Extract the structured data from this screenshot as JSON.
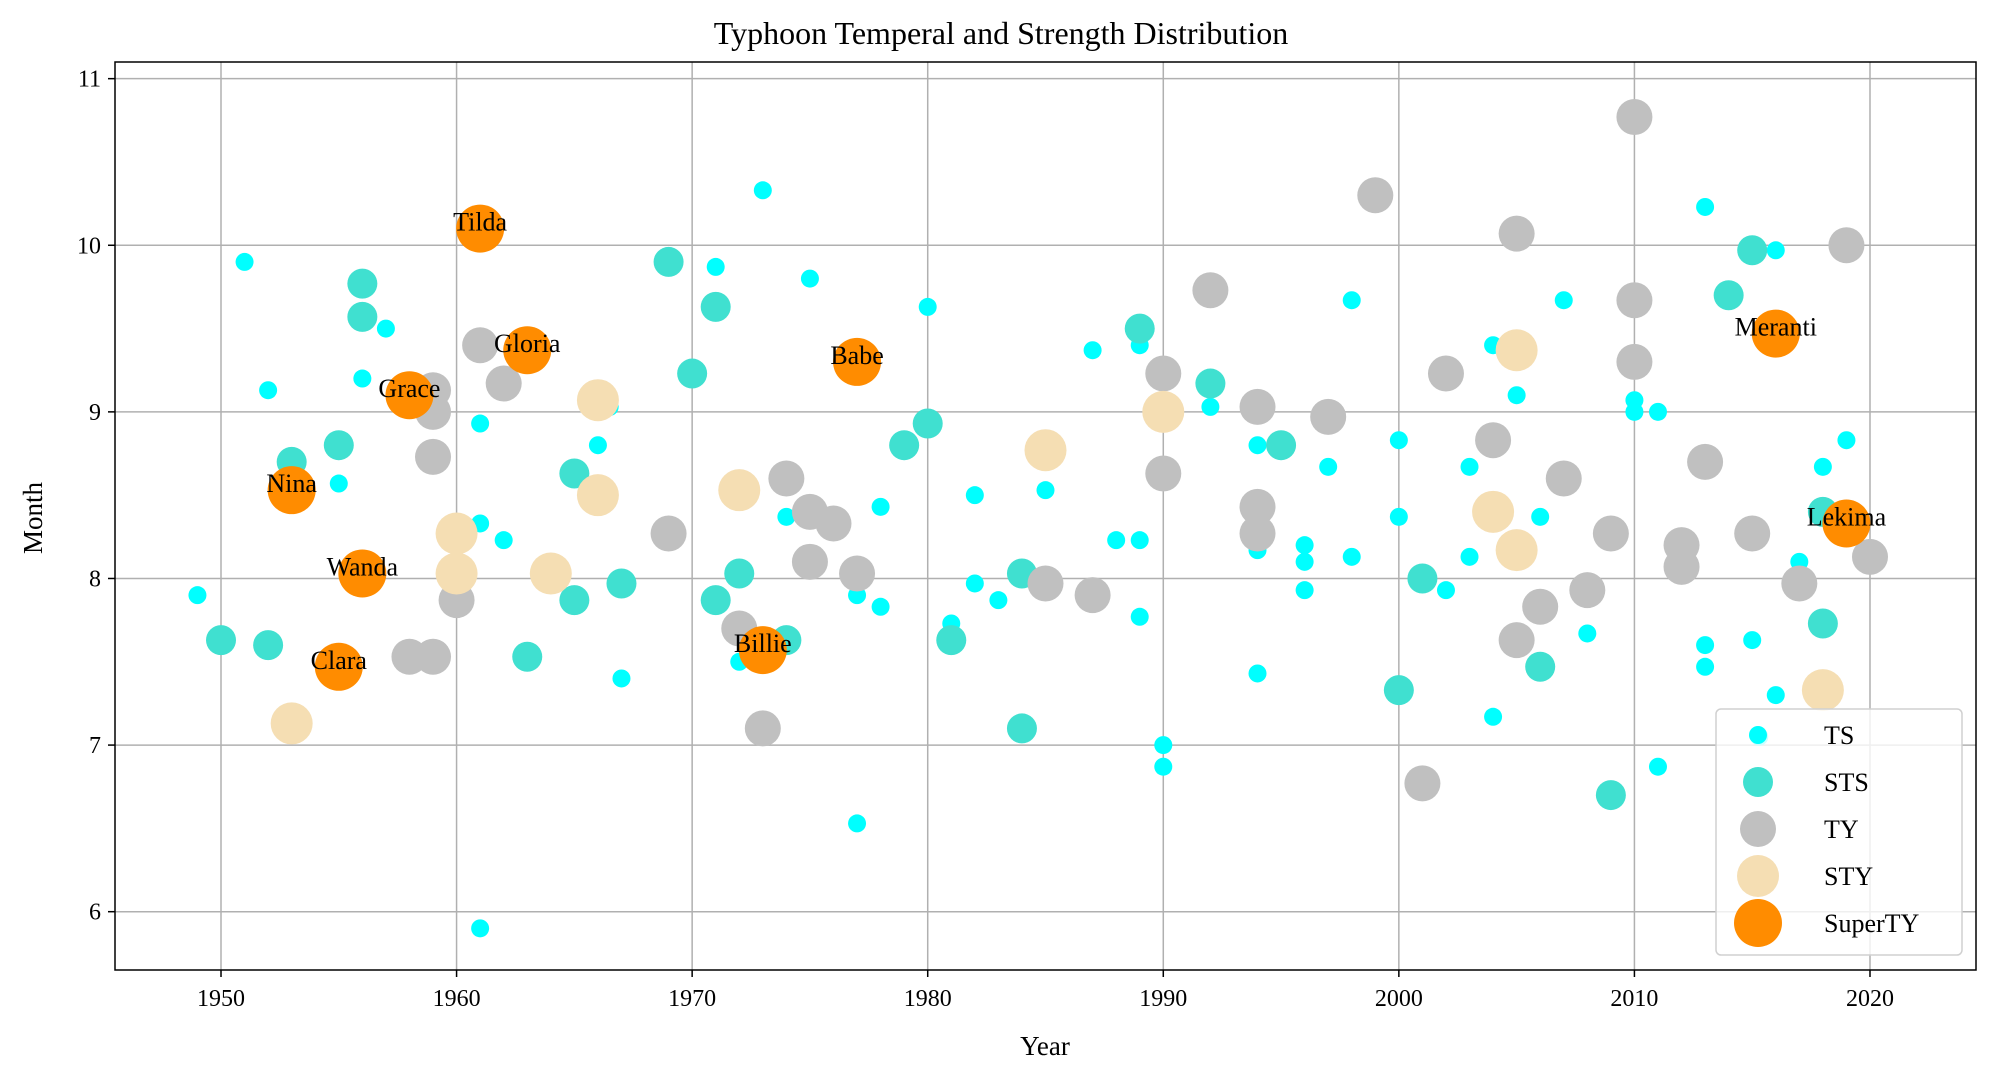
{
  "chart_data": {
    "type": "scatter",
    "title": "Typhoon Temperal and Strength Distribution",
    "xlabel": "Year",
    "ylabel": "Month",
    "xlim": [
      1945.5,
      2024.5
    ],
    "ylim": [
      5.65,
      11.1
    ],
    "xticks": [
      1950,
      1960,
      1970,
      1980,
      1990,
      2000,
      2010,
      2020
    ],
    "yticks": [
      6,
      7,
      8,
      9,
      10,
      11
    ],
    "grid": true,
    "legend_position": "bottom-right",
    "series": [
      {
        "name": "TS",
        "color": "#00ffff",
        "size": "small",
        "points": [
          [
            1949,
            7.9
          ],
          [
            1951,
            9.9
          ],
          [
            1952,
            9.13
          ],
          [
            1955,
            8.57
          ],
          [
            1956,
            9.2
          ],
          [
            1957,
            9.5
          ],
          [
            1961,
            8.93
          ],
          [
            1961,
            8.33
          ],
          [
            1961,
            5.9
          ],
          [
            1962,
            8.23
          ],
          [
            1966,
            8.8
          ],
          [
            1966.5,
            9.03
          ],
          [
            1967,
            7.4
          ],
          [
            1971,
            9.87
          ],
          [
            1972,
            7.5
          ],
          [
            1973,
            10.33
          ],
          [
            1974,
            8.37
          ],
          [
            1975,
            9.8
          ],
          [
            1977,
            7.9
          ],
          [
            1977,
            6.53
          ],
          [
            1978,
            7.83
          ],
          [
            1978,
            8.43
          ],
          [
            1980,
            9.63
          ],
          [
            1981,
            7.73
          ],
          [
            1982,
            8.5
          ],
          [
            1982,
            7.97
          ],
          [
            1983,
            7.87
          ],
          [
            1985,
            8.53
          ],
          [
            1987,
            9.37
          ],
          [
            1988,
            8.23
          ],
          [
            1989,
            9.4
          ],
          [
            1989,
            8.23
          ],
          [
            1989,
            7.77
          ],
          [
            1990,
            7.0
          ],
          [
            1990,
            6.87
          ],
          [
            1992,
            9.03
          ],
          [
            1994,
            8.8
          ],
          [
            1994,
            8.17
          ],
          [
            1994,
            7.43
          ],
          [
            1996,
            8.2
          ],
          [
            1996,
            8.1
          ],
          [
            1996,
            7.93
          ],
          [
            1997,
            8.67
          ],
          [
            1998,
            9.67
          ],
          [
            1998,
            8.13
          ],
          [
            2000,
            8.83
          ],
          [
            2000,
            8.37
          ],
          [
            2002,
            7.93
          ],
          [
            2003,
            8.67
          ],
          [
            2003,
            8.13
          ],
          [
            2004,
            9.4
          ],
          [
            2004,
            7.17
          ],
          [
            2005,
            9.1
          ],
          [
            2006,
            8.37
          ],
          [
            2007,
            9.67
          ],
          [
            2008,
            7.67
          ],
          [
            2010,
            9.07
          ],
          [
            2010,
            9.0
          ],
          [
            2011,
            6.87
          ],
          [
            2011,
            9.0
          ],
          [
            2013,
            10.23
          ],
          [
            2013,
            7.6
          ],
          [
            2013,
            7.47
          ],
          [
            2015,
            7.63
          ],
          [
            2015.3,
            7.05
          ],
          [
            2016,
            7.3
          ],
          [
            2016,
            9.97
          ],
          [
            2017,
            8.1
          ],
          [
            2018,
            8.67
          ],
          [
            2019,
            8.83
          ],
          [
            2019,
            10.03
          ]
        ]
      },
      {
        "name": "STS",
        "color": "#40e0d0",
        "size": "medium",
        "points": [
          [
            1950,
            7.63
          ],
          [
            1952,
            7.6
          ],
          [
            1953,
            8.7
          ],
          [
            1955,
            8.8
          ],
          [
            1956,
            9.77
          ],
          [
            1956,
            9.57
          ],
          [
            1963,
            7.53
          ],
          [
            1965,
            8.63
          ],
          [
            1965,
            7.87
          ],
          [
            1967,
            7.97
          ],
          [
            1969,
            9.9
          ],
          [
            1970,
            9.23
          ],
          [
            1971,
            9.63
          ],
          [
            1971,
            7.87
          ],
          [
            1972,
            8.03
          ],
          [
            1974,
            7.63
          ],
          [
            1979,
            8.8
          ],
          [
            1980,
            8.93
          ],
          [
            1981,
            7.63
          ],
          [
            1984,
            8.03
          ],
          [
            1984,
            7.1
          ],
          [
            1989,
            9.5
          ],
          [
            1992,
            9.17
          ],
          [
            1995,
            8.8
          ],
          [
            2000,
            7.33
          ],
          [
            2001,
            8.0
          ],
          [
            2006,
            7.47
          ],
          [
            2009,
            6.7
          ],
          [
            2014,
            9.7
          ],
          [
            2015,
            9.97
          ],
          [
            2018,
            8.4
          ],
          [
            2018,
            7.73
          ]
        ]
      },
      {
        "name": "TY",
        "color": "#c0c0c0",
        "size": "large",
        "points": [
          [
            1958,
            7.53
          ],
          [
            1959,
            9.13
          ],
          [
            1959,
            9.0
          ],
          [
            1959,
            8.73
          ],
          [
            1959,
            7.53
          ],
          [
            1960,
            7.87
          ],
          [
            1961,
            9.4
          ],
          [
            1962,
            9.17
          ],
          [
            1969,
            8.27
          ],
          [
            1972,
            7.7
          ],
          [
            1973,
            7.1
          ],
          [
            1974,
            8.6
          ],
          [
            1975,
            8.4
          ],
          [
            1975,
            8.1
          ],
          [
            1976,
            8.33
          ],
          [
            1977,
            8.03
          ],
          [
            1985,
            7.97
          ],
          [
            1987,
            7.9
          ],
          [
            1990,
            9.23
          ],
          [
            1990,
            8.63
          ],
          [
            1992,
            9.73
          ],
          [
            1994,
            9.03
          ],
          [
            1994,
            8.43
          ],
          [
            1994,
            8.27
          ],
          [
            1997,
            8.97
          ],
          [
            1999,
            10.3
          ],
          [
            2001,
            6.77
          ],
          [
            2002,
            9.23
          ],
          [
            2004,
            8.83
          ],
          [
            2005,
            10.07
          ],
          [
            2005,
            7.63
          ],
          [
            2006,
            7.83
          ],
          [
            2007,
            8.6
          ],
          [
            2008,
            7.93
          ],
          [
            2009,
            8.27
          ],
          [
            2010,
            10.77
          ],
          [
            2010,
            9.67
          ],
          [
            2010,
            9.3
          ],
          [
            2012,
            8.2
          ],
          [
            2012,
            8.07
          ],
          [
            2013,
            8.7
          ],
          [
            2015,
            8.27
          ],
          [
            2017,
            7.97
          ],
          [
            2019,
            10.0
          ],
          [
            2020,
            8.13
          ]
        ]
      },
      {
        "name": "STY",
        "color": "#f5deb3",
        "size": "xlarge",
        "points": [
          [
            1953,
            7.13
          ],
          [
            1960,
            8.27
          ],
          [
            1960,
            8.03
          ],
          [
            1964,
            8.03
          ],
          [
            1966,
            9.07
          ],
          [
            1966,
            8.5
          ],
          [
            1972,
            8.53
          ],
          [
            1985,
            8.77
          ],
          [
            1990,
            9.0
          ],
          [
            2004,
            8.4
          ],
          [
            2005,
            9.37
          ],
          [
            2005,
            8.17
          ],
          [
            2018,
            7.33
          ]
        ]
      },
      {
        "name": "SuperTY",
        "color": "#ff8c00",
        "size": "xxlarge",
        "points": [
          [
            1953,
            8.53
          ],
          [
            1955,
            7.47
          ],
          [
            1956,
            8.03
          ],
          [
            1958,
            9.1
          ],
          [
            1961,
            10.1
          ],
          [
            1963,
            9.37
          ],
          [
            1973,
            7.57
          ],
          [
            1977,
            9.3
          ],
          [
            2016,
            9.47
          ],
          [
            2019,
            8.33
          ]
        ]
      }
    ],
    "annotations": [
      {
        "text": "Nina",
        "x": 1953,
        "y": 8.53
      },
      {
        "text": "Clara",
        "x": 1955,
        "y": 7.47
      },
      {
        "text": "Wanda",
        "x": 1956,
        "y": 8.03
      },
      {
        "text": "Grace",
        "x": 1958,
        "y": 9.1
      },
      {
        "text": "Tilda",
        "x": 1961,
        "y": 10.1
      },
      {
        "text": "Gloria",
        "x": 1963,
        "y": 9.37
      },
      {
        "text": "Billie",
        "x": 1973,
        "y": 7.57
      },
      {
        "text": "Babe",
        "x": 1977,
        "y": 9.3
      },
      {
        "text": "Meranti",
        "x": 2016,
        "y": 9.47
      },
      {
        "text": "Lekima",
        "x": 2019,
        "y": 8.33
      }
    ]
  }
}
